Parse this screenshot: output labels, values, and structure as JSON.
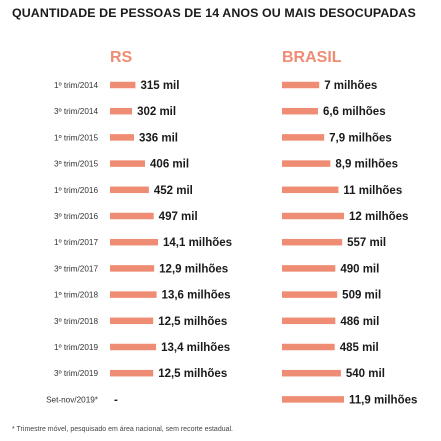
{
  "title": "QUANTIDADE DE PESSOAS DE 14 ANOS OU MAIS DESOCUPADAS",
  "footnote": "* Trimestre móvel, pesquisado em área nacional, sem recorte estadual.",
  "colors": {
    "bar": "#ef8c74",
    "header": "#ef8c74",
    "text": "#1a1a1a"
  },
  "chart_data": {
    "type": "bar",
    "orientation": "horizontal",
    "categories": [
      "1º trim/2014",
      "3º trim/2014",
      "1º trim/2015",
      "3º trim/2015",
      "1º trim/2016",
      "3º trim/2016",
      "1º trim/2017",
      "3º trim/2017",
      "1º trim/2018",
      "3º trim/2018",
      "1º trim/2019",
      "3º trim/2019",
      "Set-nov/2019*"
    ],
    "series": [
      {
        "name": "RS",
        "values": [
          315000,
          302000,
          336000,
          406000,
          452000,
          497000,
          14100000,
          12900000,
          13600000,
          12500000,
          13400000,
          12500000,
          null
        ],
        "value_labels": [
          "315 mil",
          "302 mil",
          "336 mil",
          "406 mil",
          "452 mil",
          "497 mil",
          "14,1 milhões",
          "12,9 milhões",
          "13,6 milhões",
          "12,5 milhões",
          "13,4 milhões",
          "12,5 milhões",
          "-"
        ]
      },
      {
        "name": "BRASIL",
        "values": [
          7000000,
          6600000,
          7900000,
          8900000,
          11000000,
          12000000,
          557000,
          490000,
          509000,
          486000,
          485000,
          540000,
          11900000
        ],
        "value_labels": [
          "7 milhões",
          "6,6 milhões",
          "7,9 milhões",
          "8,9 milhões",
          "11 milhões",
          "12 milhões",
          "557 mil",
          "490 mil",
          "509 mil",
          "486 mil",
          "485 mil",
          "540 mil",
          "11,9 milhões"
        ]
      }
    ],
    "bar_fraction": [
      [
        0.53,
        0.46,
        0.5,
        0.73,
        0.81,
        0.91,
        1.0,
        0.92,
        0.97,
        0.9,
        0.96,
        0.9,
        null
      ],
      [
        0.6,
        0.58,
        0.68,
        0.78,
        0.91,
        1.0,
        0.97,
        0.86,
        0.89,
        0.86,
        0.85,
        0.95,
        1.0
      ]
    ]
  }
}
